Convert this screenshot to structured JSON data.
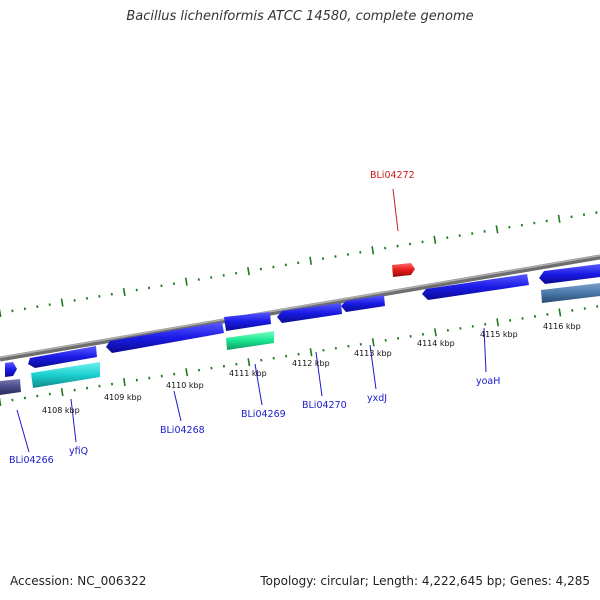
{
  "title": "Bacillus licheniformis ATCC 14580, complete genome",
  "footer": {
    "accession": "Accession: NC_006322",
    "summary": "Topology: circular; Length: 4,222,645 bp; Genes: 4,285"
  },
  "colors": {
    "forward_gene": "#1a1ae6",
    "highlight_gene": "#e61a1a",
    "label_blue": "#1a1acc",
    "label_red": "#cc1a1a",
    "tick_green": "#1f7a1f",
    "backbone": "#8a8a8a"
  },
  "ticks": [
    {
      "label": "4108 kbp"
    },
    {
      "label": "4109 kbp"
    },
    {
      "label": "4110 kbp"
    },
    {
      "label": "4111 kbp"
    },
    {
      "label": "4112 kbp"
    },
    {
      "label": "4113 kbp"
    },
    {
      "label": "4114 kbp"
    },
    {
      "label": "4115 kbp"
    },
    {
      "label": "4116 kbp"
    }
  ],
  "gene_labels": [
    {
      "name": "BLi04272",
      "color": "red"
    },
    {
      "name": "BLi04266",
      "color": "blue"
    },
    {
      "name": "yfiQ",
      "color": "blue"
    },
    {
      "name": "BLi04268",
      "color": "blue"
    },
    {
      "name": "BLi04269",
      "color": "blue"
    },
    {
      "name": "BLi04270",
      "color": "blue"
    },
    {
      "name": "yxdJ",
      "color": "blue"
    },
    {
      "name": "yoaH",
      "color": "blue"
    }
  ]
}
